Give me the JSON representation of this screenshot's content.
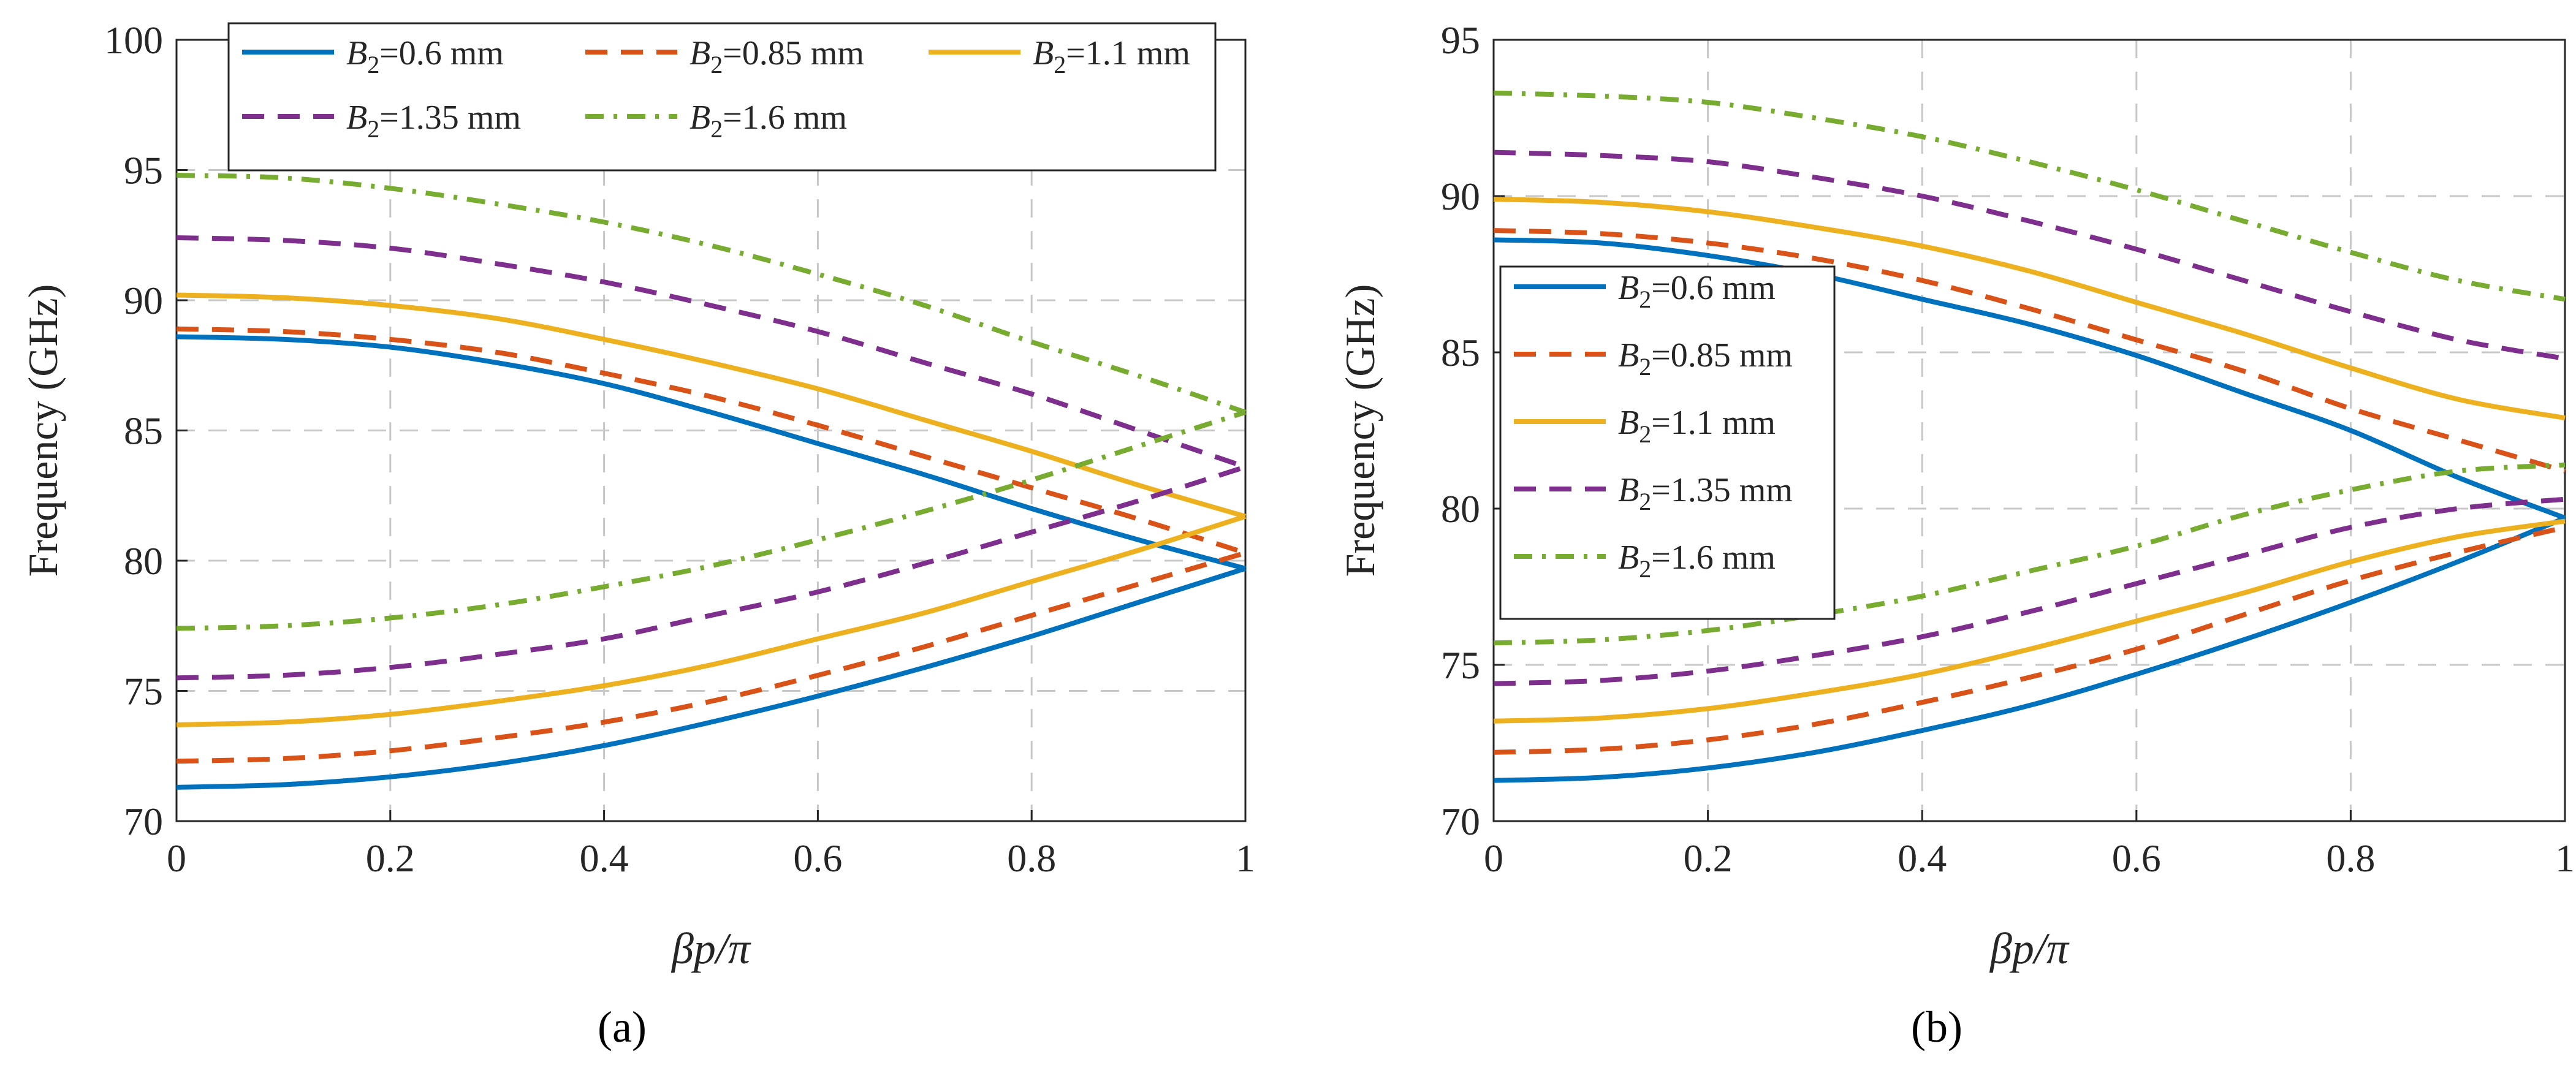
{
  "captions": [
    "(a)",
    "(b)"
  ],
  "colors": {
    "blue": "#0072bd",
    "orange": "#d95319",
    "yellow": "#edb120",
    "purple": "#7e2f8e",
    "green": "#77ac30"
  },
  "chart_data": [
    {
      "type": "line",
      "xlabel": "βp/π",
      "ylabel": "Frequency (GHz)",
      "xlim": [
        0,
        1
      ],
      "ylim": [
        70,
        100
      ],
      "xticks": [
        "0",
        "0.2",
        "0.4",
        "0.6",
        "0.8",
        "1"
      ],
      "yticks": [
        "70",
        "75",
        "80",
        "85",
        "90",
        "95",
        "100"
      ],
      "grid": true,
      "legend_position": "top",
      "x": [
        0,
        0.1,
        0.2,
        0.3,
        0.4,
        0.5,
        0.6,
        0.7,
        0.8,
        0.9,
        1
      ],
      "series": [
        {
          "name": "B2=0.6 mm",
          "legend": {
            "sym": "B",
            "sub": "2",
            "rest": "=0.6 mm"
          },
          "color": "blue",
          "dash": "solid",
          "upper": [
            88.6,
            88.5,
            88.2,
            87.6,
            86.8,
            85.7,
            84.5,
            83.3,
            82.0,
            80.8,
            79.7
          ],
          "lower": [
            71.3,
            71.4,
            71.7,
            72.2,
            72.9,
            73.8,
            74.8,
            75.9,
            77.1,
            78.4,
            79.7
          ]
        },
        {
          "name": "B2=0.85 mm",
          "legend": {
            "sym": "B",
            "sub": "2",
            "rest": "=0.85 mm"
          },
          "color": "orange",
          "dash": "dashed",
          "upper": [
            88.9,
            88.8,
            88.5,
            88.0,
            87.2,
            86.3,
            85.2,
            84.0,
            82.8,
            81.6,
            80.3
          ],
          "lower": [
            72.3,
            72.4,
            72.7,
            73.2,
            73.8,
            74.6,
            75.6,
            76.7,
            77.9,
            79.1,
            80.3
          ]
        },
        {
          "name": "B2=1.1 mm",
          "legend": {
            "sym": "B",
            "sub": "2",
            "rest": "=1.1 mm"
          },
          "color": "yellow",
          "dash": "solid",
          "upper": [
            90.2,
            90.1,
            89.8,
            89.3,
            88.5,
            87.6,
            86.6,
            85.4,
            84.2,
            82.9,
            81.7
          ],
          "lower": [
            73.7,
            73.8,
            74.1,
            74.6,
            75.2,
            76.0,
            77.0,
            78.0,
            79.2,
            80.4,
            81.7
          ]
        },
        {
          "name": "B2=1.35 mm",
          "legend": {
            "sym": "B",
            "sub": "2",
            "rest": "=1.35 mm"
          },
          "color": "purple",
          "dash": "dashed",
          "upper": [
            92.4,
            92.3,
            92.0,
            91.4,
            90.7,
            89.8,
            88.8,
            87.6,
            86.4,
            85.0,
            83.6
          ],
          "lower": [
            75.5,
            75.6,
            75.9,
            76.4,
            77.0,
            77.9,
            78.8,
            79.9,
            81.1,
            82.3,
            83.6
          ]
        },
        {
          "name": "B2=1.6 mm",
          "legend": {
            "sym": "B",
            "sub": "2",
            "rest": "=1.6 mm"
          },
          "color": "green",
          "dash": "dashdot",
          "upper": [
            94.8,
            94.7,
            94.3,
            93.7,
            93.0,
            92.1,
            91.0,
            89.8,
            88.4,
            87.1,
            85.7
          ],
          "lower": [
            77.4,
            77.5,
            77.8,
            78.3,
            79.0,
            79.8,
            80.8,
            81.9,
            83.1,
            84.4,
            85.7
          ]
        }
      ]
    },
    {
      "type": "line",
      "xlabel": "βp/π",
      "ylabel": "Frequency (GHz)",
      "xlim": [
        0,
        1
      ],
      "ylim": [
        70,
        95
      ],
      "xticks": [
        "0",
        "0.2",
        "0.4",
        "0.6",
        "0.8",
        "1"
      ],
      "yticks": [
        "70",
        "75",
        "80",
        "85",
        "90",
        "95"
      ],
      "grid": true,
      "legend_position": "left",
      "x": [
        0,
        0.1,
        0.2,
        0.3,
        0.4,
        0.5,
        0.6,
        0.7,
        0.8,
        0.9,
        1
      ],
      "series": [
        {
          "name": "B2=0.6 mm",
          "legend": {
            "sym": "B",
            "sub": "2",
            "rest": "=0.6 mm"
          },
          "color": "blue",
          "dash": "solid",
          "upper": [
            88.6,
            88.5,
            88.1,
            87.5,
            86.7,
            85.9,
            84.9,
            83.7,
            82.5,
            81.0,
            79.7
          ],
          "lower": [
            71.3,
            71.4,
            71.7,
            72.2,
            72.9,
            73.7,
            74.7,
            75.8,
            77.0,
            78.3,
            79.7
          ]
        },
        {
          "name": "B2=0.85 mm",
          "legend": {
            "sym": "B",
            "sub": "2",
            "rest": "=0.85 mm"
          },
          "color": "orange",
          "dash": "dashed",
          "upper": [
            88.9,
            88.8,
            88.5,
            88.0,
            87.3,
            86.4,
            85.4,
            84.4,
            83.2,
            82.2,
            81.2
          ],
          "lower": [
            72.2,
            72.3,
            72.6,
            73.1,
            73.8,
            74.6,
            75.5,
            76.6,
            77.7,
            78.6,
            79.4
          ]
        },
        {
          "name": "B2=1.1 mm",
          "legend": {
            "sym": "B",
            "sub": "2",
            "rest": "=1.1 mm"
          },
          "color": "yellow",
          "dash": "solid",
          "upper": [
            89.9,
            89.8,
            89.5,
            89.0,
            88.4,
            87.6,
            86.6,
            85.6,
            84.5,
            83.5,
            82.9
          ],
          "lower": [
            73.2,
            73.3,
            73.6,
            74.1,
            74.7,
            75.5,
            76.4,
            77.3,
            78.3,
            79.1,
            79.6
          ]
        },
        {
          "name": "B2=1.35 mm",
          "legend": {
            "sym": "B",
            "sub": "2",
            "rest": "=1.35 mm"
          },
          "color": "purple",
          "dash": "dashed",
          "upper": [
            91.4,
            91.3,
            91.1,
            90.6,
            90.0,
            89.2,
            88.3,
            87.3,
            86.3,
            85.4,
            84.8
          ],
          "lower": [
            74.4,
            74.5,
            74.8,
            75.3,
            75.9,
            76.7,
            77.6,
            78.5,
            79.4,
            80.0,
            80.3
          ]
        },
        {
          "name": "B2=1.6 mm",
          "legend": {
            "sym": "B",
            "sub": "2",
            "rest": "=1.6 mm"
          },
          "color": "green",
          "dash": "dashdot",
          "upper": [
            93.3,
            93.2,
            93.0,
            92.5,
            91.9,
            91.1,
            90.2,
            89.2,
            88.2,
            87.3,
            86.7
          ],
          "lower": [
            75.7,
            75.8,
            76.1,
            76.6,
            77.2,
            78.0,
            78.8,
            79.8,
            80.6,
            81.2,
            81.4
          ]
        }
      ]
    }
  ]
}
